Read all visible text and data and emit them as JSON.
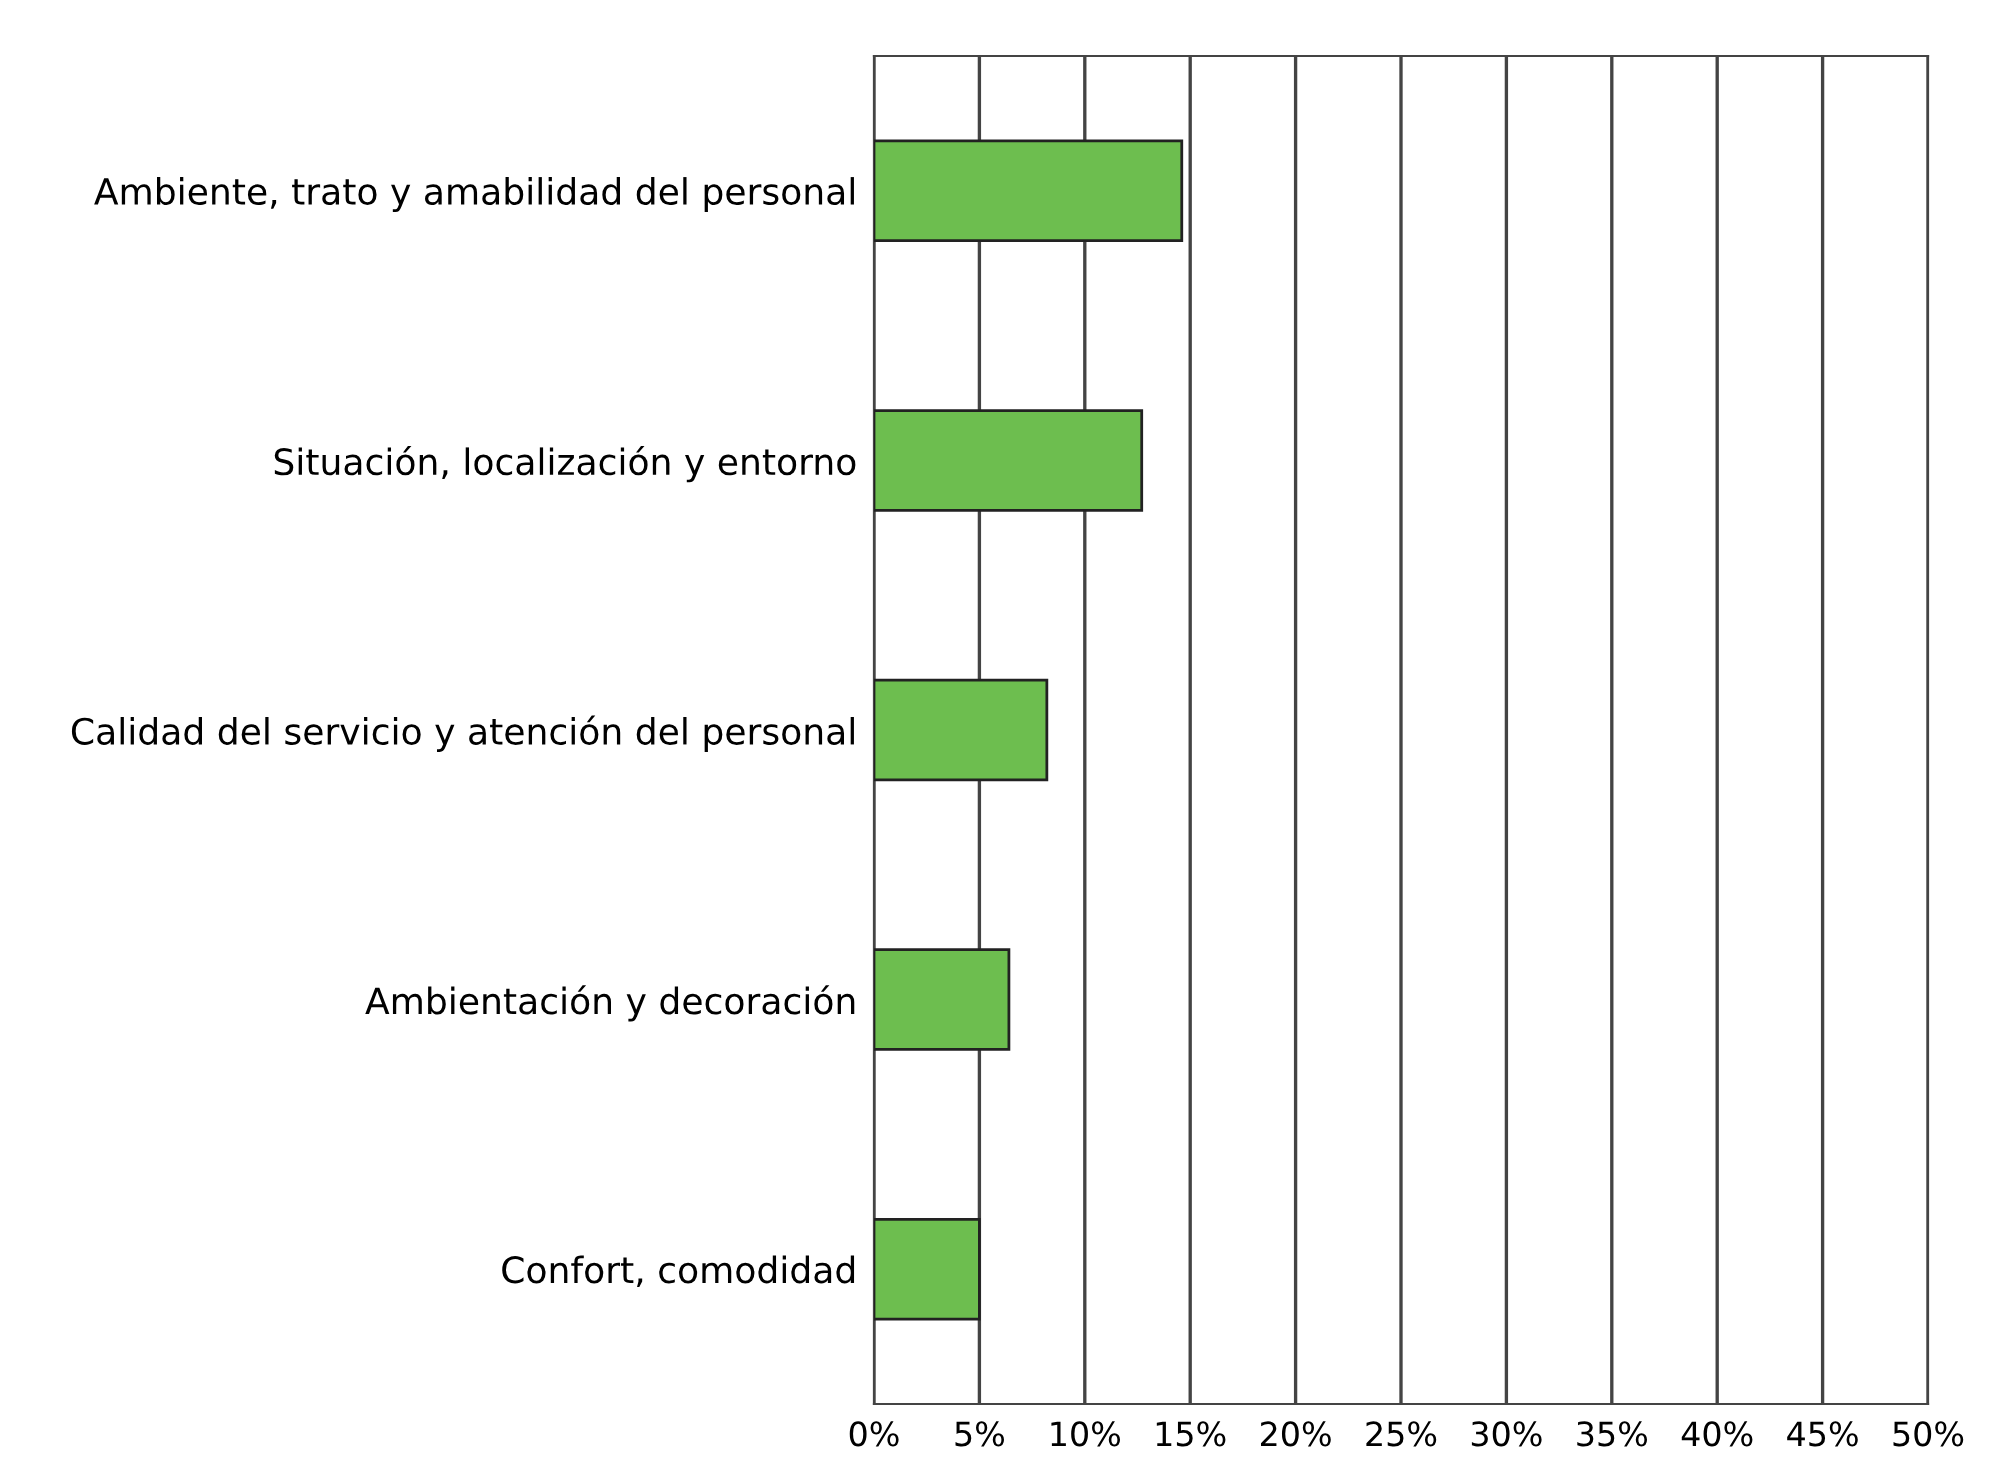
{
  "chart_data": {
    "type": "bar",
    "orientation": "horizontal",
    "categories": [
      "Ambiente, trato y amabilidad del personal",
      "Situación, localización y entorno",
      "Calidad del servicio y atención del personal",
      "Ambientación y decoración",
      "Confort, comodidad"
    ],
    "values": [
      14.6,
      12.7,
      8.2,
      6.4,
      5.0
    ],
    "color": "#6dbe4f",
    "xlim": [
      0,
      50
    ],
    "xticks": [
      {
        "value": 0,
        "label": "0%"
      },
      {
        "value": 5,
        "label": "5%"
      },
      {
        "value": 10,
        "label": "10%"
      },
      {
        "value": 15,
        "label": "15%"
      },
      {
        "value": 20,
        "label": "20%"
      },
      {
        "value": 25,
        "label": "25%"
      },
      {
        "value": 30,
        "label": "30%"
      },
      {
        "value": 35,
        "label": "35%"
      },
      {
        "value": 40,
        "label": "40%"
      },
      {
        "value": 45,
        "label": "45%"
      },
      {
        "value": 50,
        "label": "50%"
      }
    ],
    "grid": "x",
    "legend": false
  }
}
